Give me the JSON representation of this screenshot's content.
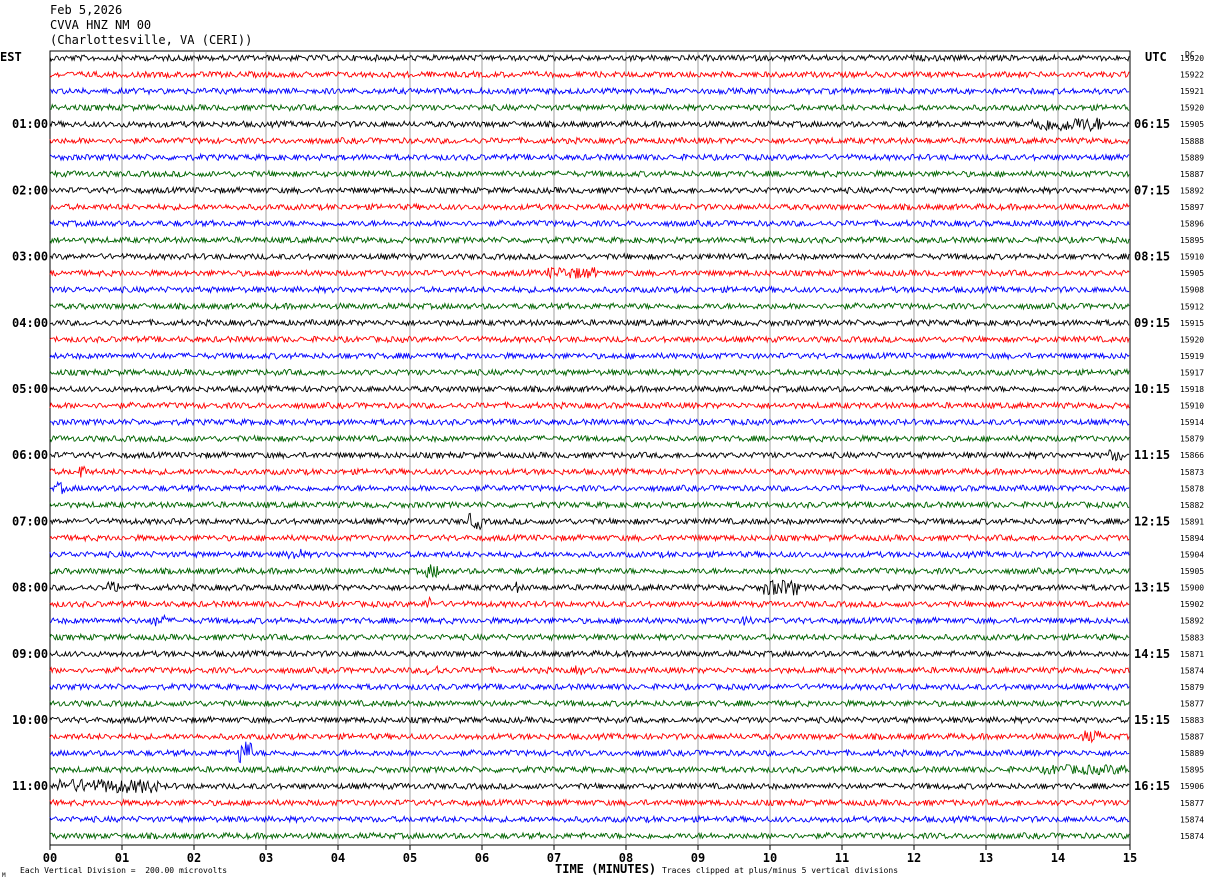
{
  "header": {
    "date": "Feb 5,2026",
    "station": "CVVA HNZ NM 00",
    "location": "(Charlottesville, VA (CERI))"
  },
  "left_tz": "EST",
  "right_tz": "UTC",
  "dc_label": "DC",
  "footer": {
    "scale_note": "Each Vertical Division =  200.00 microvolts",
    "clip_note": "Traces clipped at plus/minus 5 vertical divisions",
    "corner_mark": "M"
  },
  "chart_data": {
    "type": "line",
    "title": "CVVA HNZ NM 00",
    "xlabel": "TIME (MINUTES)",
    "x_ticks": [
      "00",
      "01",
      "02",
      "03",
      "04",
      "05",
      "06",
      "07",
      "08",
      "09",
      "10",
      "11",
      "12",
      "13",
      "14",
      "15"
    ],
    "xlim": [
      0,
      15
    ],
    "trace_colors": [
      "#000000",
      "#ff0000",
      "#0000ff",
      "#006400"
    ],
    "left_hour_labels": [
      "01:00",
      "02:00",
      "03:00",
      "04:00",
      "05:00",
      "06:00",
      "07:00",
      "08:00",
      "09:00",
      "10:00",
      "11:00"
    ],
    "right_hour_labels": [
      "06:15",
      "07:15",
      "08:15",
      "09:15",
      "10:15",
      "11:15",
      "12:15",
      "13:15",
      "14:15",
      "15:15",
      "16:15"
    ],
    "dc_offsets": [
      15920,
      15922,
      15921,
      15920,
      15905,
      15888,
      15889,
      15887,
      15892,
      15897,
      15896,
      15895,
      15910,
      15905,
      15908,
      15912,
      15915,
      15920,
      15919,
      15917,
      15918,
      15910,
      15914,
      15879,
      15866,
      15873,
      15878,
      15882,
      15891,
      15894,
      15904,
      15905,
      15900,
      15902,
      15892,
      15883,
      15871,
      15874,
      15879,
      15877,
      15883,
      15887,
      15889,
      15895,
      15906,
      15877,
      15874,
      15874
    ],
    "scale_microvolts_per_division": 200.0,
    "clip_divisions": 5
  }
}
